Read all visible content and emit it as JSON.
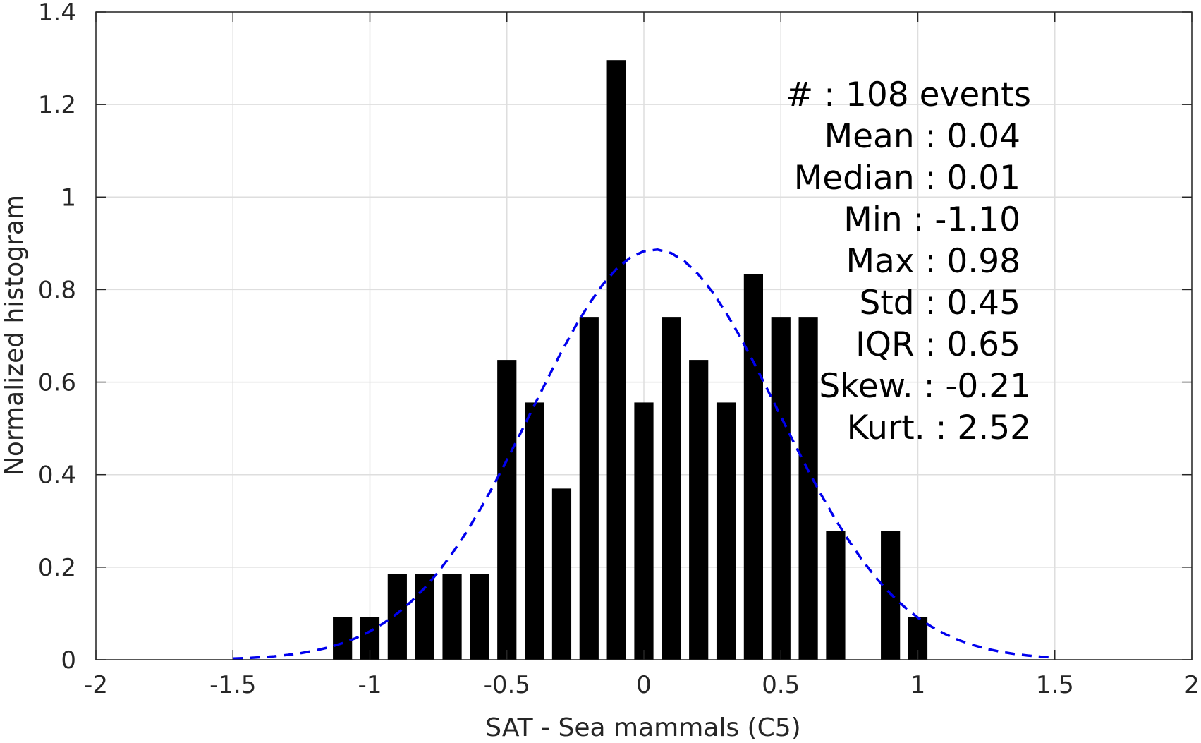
{
  "chart_data": {
    "type": "bar",
    "xlabel": "SAT - Sea mammals (C5)",
    "ylabel": "Normalized histogram",
    "xlim": [
      -2,
      2
    ],
    "ylim": [
      0,
      1.4
    ],
    "x_ticks": [
      -2,
      -1.5,
      -1,
      -0.5,
      0,
      0.5,
      1,
      1.5,
      2
    ],
    "x_tick_labels": [
      "-2",
      "-1.5",
      "-1",
      "-0.5",
      "0",
      "0.5",
      "1",
      "1.5",
      "2"
    ],
    "y_ticks": [
      0,
      0.2,
      0.4,
      0.6,
      0.8,
      1,
      1.2,
      1.4
    ],
    "y_tick_labels": [
      "0",
      "0.2",
      "0.4",
      "0.6",
      "0.8",
      "1",
      "1.2",
      "1.4"
    ],
    "grid": true,
    "bar_width": 0.07,
    "series": [
      {
        "type": "bar",
        "color": "#000000",
        "x": [
          -1.1,
          -1.0,
          -0.9,
          -0.8,
          -0.7,
          -0.6,
          -0.5,
          -0.4,
          -0.3,
          -0.2,
          -0.1,
          0.0,
          0.1,
          0.2,
          0.3,
          0.4,
          0.5,
          0.6,
          0.7,
          0.9,
          1.0
        ],
        "values": [
          0.093,
          0.093,
          0.185,
          0.185,
          0.185,
          0.185,
          0.648,
          0.556,
          0.37,
          0.741,
          1.296,
          0.556,
          0.741,
          0.648,
          0.556,
          0.833,
          0.741,
          0.741,
          0.278,
          0.278,
          0.093
        ]
      },
      {
        "type": "line",
        "style": "dashed",
        "color": "#0000ee",
        "fit": "normal",
        "mean": 0.04,
        "std": 0.45,
        "x_range": [
          -1.5,
          1.5
        ]
      }
    ],
    "stats_lines": [
      "#  : 108 events",
      "Mean : 0.04",
      "Median : 0.01",
      "Min : -1.10",
      "Max : 0.98",
      "Std : 0.45",
      "IQR : 0.65",
      "Skew. : -0.21",
      "Kurt. : 2.52"
    ]
  }
}
